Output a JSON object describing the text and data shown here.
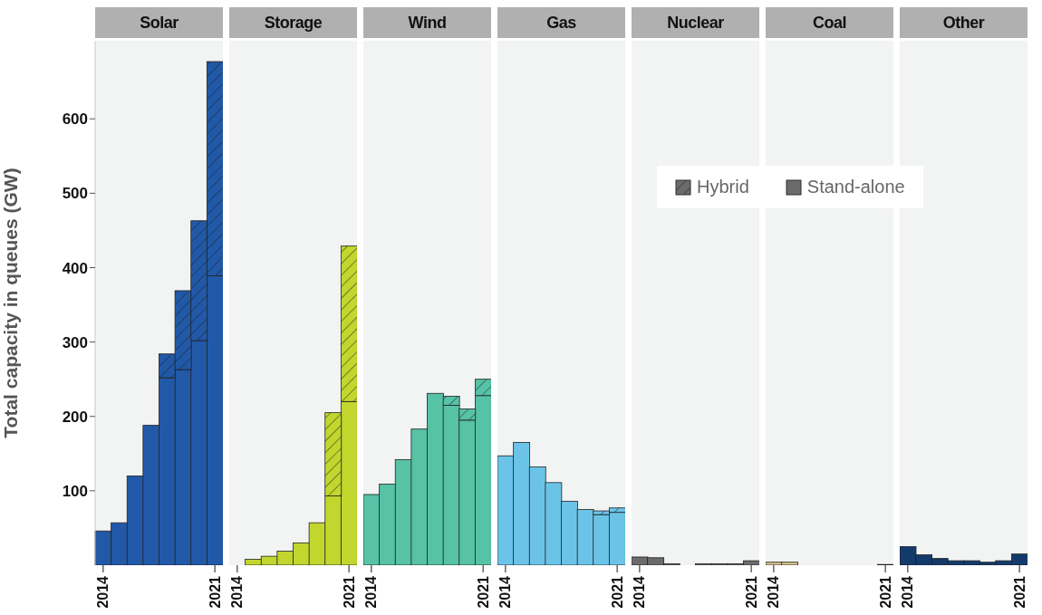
{
  "chart_data": [
    {
      "type": "bar",
      "title": "Solar",
      "ylabel": "Total capacity in queues (GW)",
      "stacked": true,
      "categories": [
        "2014",
        null,
        null,
        null,
        null,
        null,
        null,
        "2021"
      ],
      "ylim": [
        0,
        705
      ],
      "yticks": [
        100,
        200,
        300,
        400,
        500,
        600
      ],
      "series": [
        {
          "color": "#2159a8",
          "values": [
            46,
            57,
            120,
            188,
            252,
            263,
            302,
            389
          ]
        },
        {
          "color": "#2159a8",
          "values": [
            null,
            null,
            null,
            null,
            32,
            106,
            161,
            288
          ]
        }
      ]
    },
    {
      "type": "bar",
      "title": "Storage",
      "stacked": true,
      "categories": [
        "2014",
        null,
        null,
        null,
        null,
        null,
        null,
        "2021"
      ],
      "ylim": [
        0,
        705
      ],
      "tick_labels": "x",
      "series": [
        {
          "color": "#c2d62e",
          "values": [
            null,
            8,
            12,
            19,
            30,
            57,
            93,
            220
          ]
        },
        {
          "color": "#c2d62e",
          "values": [
            null,
            null,
            null,
            null,
            null,
            null,
            112,
            209
          ]
        }
      ]
    },
    {
      "type": "bar",
      "title": "Wind",
      "stacked": true,
      "categories": [
        "2014",
        null,
        null,
        null,
        null,
        null,
        null,
        "2021"
      ],
      "ylim": [
        0,
        705
      ],
      "tick_labels": "x",
      "series": [
        {
          "color": "#56c2a6",
          "values": [
            95,
            109,
            142,
            183,
            231,
            215,
            195,
            228
          ]
        },
        {
          "color": "#56c2a6",
          "values": [
            null,
            null,
            null,
            null,
            null,
            12,
            15,
            22
          ]
        }
      ]
    },
    {
      "type": "bar",
      "title": "Gas",
      "stacked": true,
      "categories": [
        "2014",
        null,
        null,
        null,
        null,
        null,
        null,
        "2021"
      ],
      "ylim": [
        0,
        705
      ],
      "tick_labels": "x",
      "series": [
        {
          "color": "#6bc4e8",
          "values": [
            147,
            165,
            132,
            111,
            86,
            75,
            68,
            71
          ]
        },
        {
          "color": "#6bc4e8",
          "values": [
            null,
            null,
            null,
            null,
            null,
            null,
            5,
            6
          ]
        }
      ]
    },
    {
      "type": "bar",
      "title": "Nuclear",
      "stacked": true,
      "categories": [
        "2014",
        null,
        null,
        null,
        null,
        null,
        null,
        "2021"
      ],
      "ylim": [
        0,
        705
      ],
      "tick_labels": "x",
      "legend": "top right",
      "series": [
        {
          "name": "Stand-alone",
          "color": "#6b6b6b",
          "values": [
            11,
            10,
            2,
            null,
            2,
            2,
            2,
            6
          ]
        },
        {
          "name": "Hybrid",
          "color": "#6b6b6b",
          "values": [
            null,
            null,
            null,
            null,
            null,
            null,
            null,
            null
          ]
        }
      ]
    },
    {
      "type": "bar",
      "title": "Coal",
      "stacked": true,
      "categories": [
        "2014",
        null,
        null,
        null,
        null,
        null,
        null,
        "2021"
      ],
      "ylim": [
        0,
        705
      ],
      "tick_labels": "x",
      "series": [
        {
          "color": "#d9c08f",
          "values": [
            4,
            4,
            null,
            null,
            null,
            null,
            null,
            1
          ]
        }
      ]
    },
    {
      "type": "bar",
      "title": "Other",
      "stacked": true,
      "categories": [
        "2014",
        null,
        null,
        null,
        null,
        null,
        null,
        "2021"
      ],
      "ylim": [
        0,
        705
      ],
      "tick_labels": "x",
      "series": [
        {
          "color": "#143a6b",
          "values": [
            25,
            14,
            9,
            6,
            6,
            4,
            6,
            15
          ]
        }
      ]
    }
  ]
}
